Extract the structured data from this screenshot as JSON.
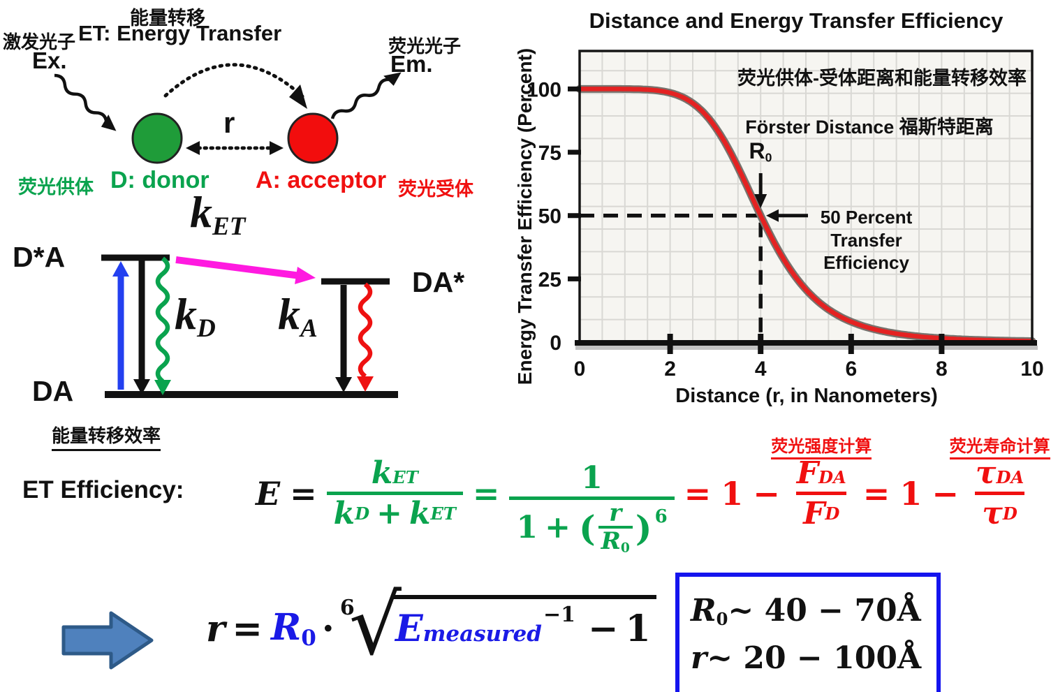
{
  "top_diagram": {
    "cn_title": "能量转移",
    "en_title": "ET: Energy Transfer",
    "excitation_cn": "激发光子",
    "excitation_label": "Ex.",
    "emission_cn": "荧光光子",
    "emission_label": "Em.",
    "distance_label": "r",
    "donor_cn": "荧光供体",
    "donor_label": "D: donor",
    "acceptor_label": "A: acceptor",
    "acceptor_cn": "荧光受体"
  },
  "energy_diagram": {
    "excited_state": "D*A",
    "ground_state": "DA",
    "acceptor_excited_state": "DA*",
    "k": "k",
    "et_sub": "ET",
    "d_sub": "D",
    "a_sub": "A",
    "caption": "能量转移效率"
  },
  "chart": {
    "title": "Distance and Energy Transfer Efficiency",
    "y_axis_label": "Energy Transfer Efficiency (Percent)",
    "x_axis_label": "Distance (r, in Nanometers)",
    "annotation_cn": "荧光供体-受体距离和能量转移效率",
    "forster_label": "Förster Distance 福斯特距离",
    "r0_symbol": "R",
    "r0_sub": "0",
    "fifty_lines": [
      "50 Percent",
      "Transfer",
      "Efficiency"
    ]
  },
  "chart_data": {
    "type": "line",
    "title": "Distance and Energy Transfer Efficiency",
    "xlabel": "Distance (r, in Nanometers)",
    "ylabel": "Energy Transfer Efficiency (Percent)",
    "xlim": [
      0,
      10
    ],
    "ylim": [
      0,
      115
    ],
    "x_ticks": [
      0,
      2,
      4,
      6,
      8,
      10
    ],
    "y_ticks": [
      0,
      25,
      50,
      75,
      100
    ],
    "grid": true,
    "forster_distance_R0": 4,
    "efficiency_at_R0_percent": 50,
    "formula": "E = 100 / (1 + (r/R0)^6)",
    "guides": {
      "h_dash_y": 50,
      "v_dash_x": 4
    },
    "series": [
      {
        "name": "Energy Transfer Efficiency",
        "x": [
          0,
          0.5,
          1,
          1.5,
          2,
          2.5,
          3,
          3.5,
          4,
          4.5,
          5,
          5.5,
          6,
          6.5,
          7,
          7.5,
          8,
          8.5,
          9,
          9.5,
          10
        ],
        "y": [
          100,
          100,
          99.98,
          99.7,
          98.5,
          94.4,
          84.9,
          69.0,
          50,
          33.0,
          20.8,
          12.9,
          8.1,
          5.2,
          3.4,
          2.3,
          1.5,
          1.1,
          0.8,
          0.6,
          0.4
        ]
      }
    ],
    "annotations": [
      "荧光供体-受体距离和能量转移效率",
      "Förster Distance 福斯特距离",
      "R0",
      "50 Percent Transfer Efficiency"
    ]
  },
  "et_formula": {
    "heading": "ET Efficiency:",
    "E": "E",
    "eq": "=",
    "k": "k",
    "et_sub": "ET",
    "d_sub": "D",
    "plus": "+",
    "one": "1",
    "r": "r",
    "R": "R",
    "zero": "0",
    "power": "6",
    "minus": "−",
    "F": "F",
    "da_sub": "DA",
    "tau": "τ",
    "lparen": "(",
    "rparen": ")",
    "intensity_note": "荧光强度计算",
    "lifetime_note": "荧光寿命计算"
  },
  "distance_formula": {
    "r": "r",
    "eq": "=",
    "R": "R",
    "zero": "0",
    "dot": "·",
    "root_index": "6",
    "E": "E",
    "measured_sub": "measured",
    "inverse_sup": "−1",
    "minus": "−",
    "one": "1"
  },
  "range_box": {
    "r0_symbol": "R",
    "r0_sub": "0",
    "r0_range": "~ 40 − 70Å",
    "r_symbol": "r",
    "r_range": "~ 20 − 100Å"
  },
  "colors": {
    "donor_green": "#1f9c39",
    "acceptor_red": "#f20d0d",
    "text_green": "#0aa34e",
    "text_red": "#f01010",
    "text_blue": "#1a1ae6",
    "magenta": "#ff1ae0",
    "excitation_blue": "#2340f0",
    "curve_core": "#e42222",
    "curve_halo": "#77736e",
    "grid": "#d9d8d4",
    "plot_bg": "#f6f5f1",
    "block_arrow_fill": "#4f81bd",
    "block_arrow_stroke": "#2e5a88",
    "box_border_blue": "#1414ee"
  }
}
